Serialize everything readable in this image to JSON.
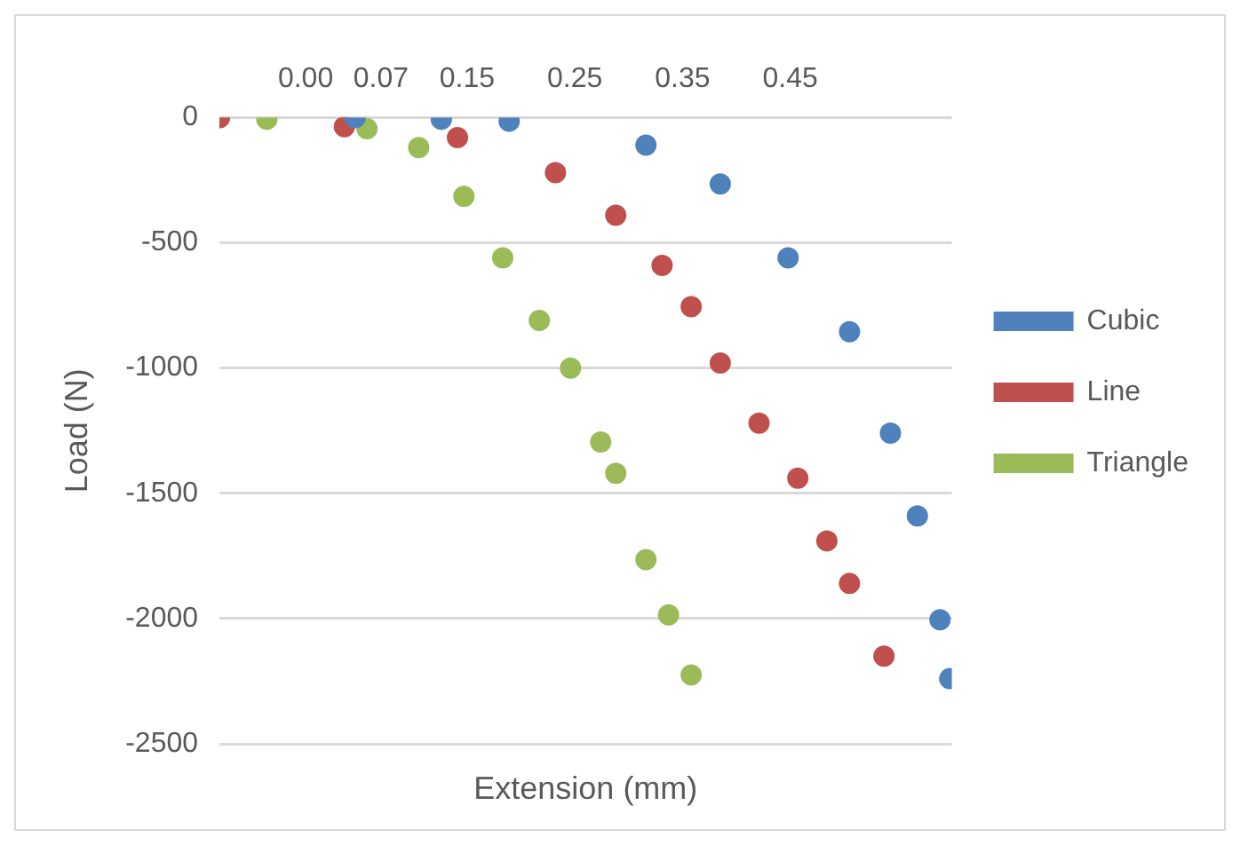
{
  "chart_data": {
    "type": "scatter",
    "xlabel": "Extension (mm)",
    "ylabel": "Load (N)",
    "xlim": [
      -0.08,
      0.6
    ],
    "xticks": [
      {
        "value": 0,
        "label": "0.00"
      },
      0.07,
      0.15,
      0.25,
      0.35,
      0.45
    ],
    "ylim": [
      -2500,
      0
    ],
    "yticks": [
      0,
      -500,
      -1000,
      -1500,
      -2000,
      -2500
    ],
    "grid": "y",
    "legend": "right",
    "marker": "circle",
    "series": [
      {
        "name": "Cubic",
        "color": "#4f81bd",
        "x": [
          0.046,
          0.126,
          0.189,
          0.316,
          0.385,
          0.448,
          0.505,
          0.543,
          0.568,
          0.589,
          0.598
        ],
        "values": [
          0,
          -7,
          -15,
          -110,
          -265,
          -560,
          -855,
          -1260,
          -1590,
          -2005,
          -2240
        ]
      },
      {
        "name": "Line",
        "color": "#c0504d",
        "x": [
          -0.08,
          0.036,
          0.141,
          0.232,
          0.288,
          0.331,
          0.358,
          0.385,
          0.421,
          0.457,
          0.484,
          0.505,
          0.537
        ],
        "values": [
          0,
          -37,
          -80,
          -220,
          -390,
          -590,
          -755,
          -980,
          -1220,
          -1440,
          -1690,
          -1860,
          -2150
        ]
      },
      {
        "name": "Triangle",
        "color": "#9bbb59",
        "x": [
          -0.08,
          -0.036,
          0.057,
          0.105,
          0.147,
          0.183,
          0.217,
          0.246,
          0.274,
          0.288,
          0.316,
          0.337,
          0.358
        ],
        "values": [
          0,
          -7,
          -45,
          -120,
          -315,
          -560,
          -810,
          -1000,
          -1295,
          -1420,
          -1765,
          -1985,
          -2225
        ]
      }
    ]
  }
}
